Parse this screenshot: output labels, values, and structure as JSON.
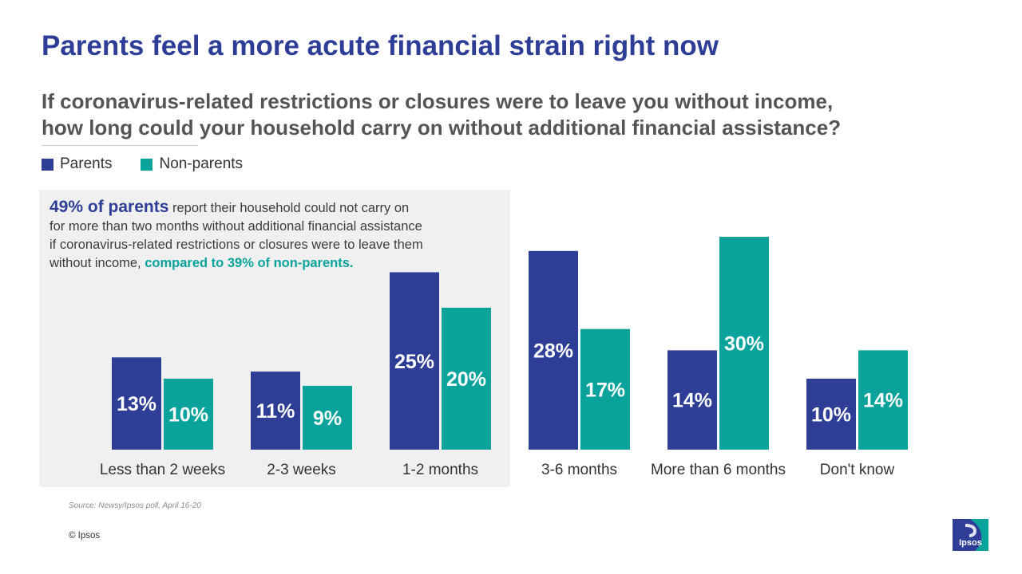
{
  "title": "Parents feel a more acute financial strain right now",
  "subtitle": {
    "line1": "If coronavirus-related restrictions or closures were to leave you without income,",
    "line2": "how long could your household carry on without additional financial assistance?"
  },
  "legend": {
    "parents": "Parents",
    "non_parents": "Non-parents"
  },
  "callout": {
    "lead": "49%  of parents",
    "body": " report their household could not carry on for more than two months without additional financial assistance if coronavirus-related restrictions or closures were to leave them without income, ",
    "compare": "compared to 39% of non-parents."
  },
  "colors": {
    "parents": "#2e3e97",
    "non_parents": "#0aa39b"
  },
  "chart_data": {
    "type": "bar",
    "title": "If coronavirus-related restrictions or closures were to leave you without income, how long could your household carry on without additional financial assistance?",
    "categories": [
      "Less than 2 weeks",
      "2-3 weeks",
      "1-2 months",
      "3-6 months",
      "More than 6 months",
      "Don't know"
    ],
    "series": [
      {
        "name": "Parents",
        "values": [
          13,
          11,
          25,
          28,
          14,
          10
        ],
        "labels": [
          "13%",
          "11%",
          "25%",
          "28%",
          "14%",
          "10%"
        ]
      },
      {
        "name": "Non-parents",
        "values": [
          10,
          9,
          20,
          17,
          30,
          14
        ],
        "labels": [
          "10%",
          "9%",
          "20%",
          "17%",
          "30%",
          "14%"
        ]
      }
    ],
    "ylim": [
      0,
      30
    ],
    "xlabel": "",
    "ylabel": "",
    "grid": false,
    "legend": "top-left"
  },
  "source": "Source: Newsy/Ipsos poll, April 16-20",
  "copyright": "© Ipsos",
  "logo": {
    "text": "Ipsos"
  }
}
